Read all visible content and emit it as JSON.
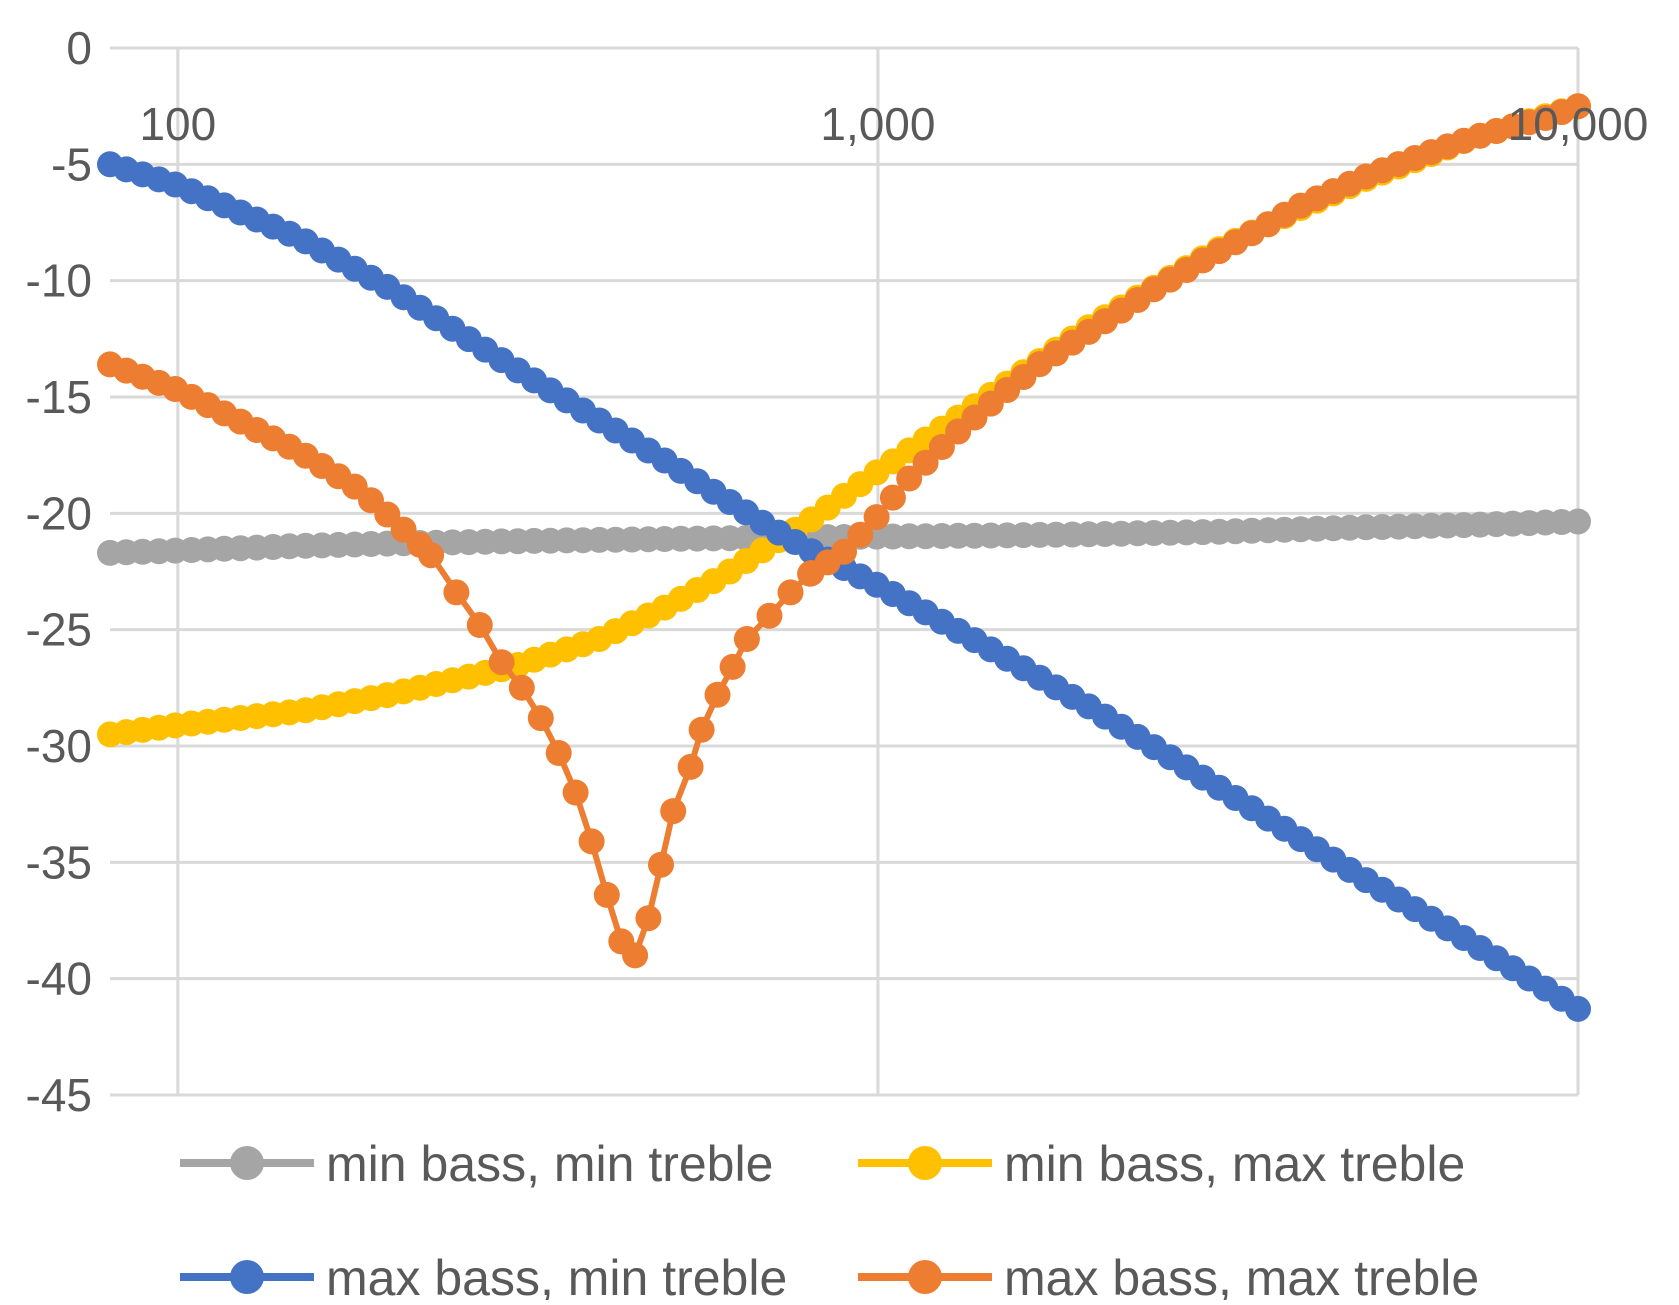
{
  "chart_data": {
    "type": "line",
    "x_scale": "log",
    "xlim": [
      80,
      10000
    ],
    "ylim": [
      -45,
      0
    ],
    "x_ticks": [
      100,
      1000,
      10000
    ],
    "x_tick_labels": [
      "100",
      "1,000",
      "10,000"
    ],
    "y_ticks": [
      0,
      -5,
      -10,
      -15,
      -20,
      -25,
      -30,
      -35,
      -40,
      -45
    ],
    "y_tick_labels": [
      "0",
      "-5",
      "-10",
      "-15",
      "-20",
      "-25",
      "-30",
      "-35",
      "-40",
      "-45"
    ],
    "grid": true,
    "legend_position": "bottom",
    "title": "",
    "xlabel": "",
    "ylabel": "",
    "series": [
      {
        "name": "min bass, min treble",
        "color": "#A5A5A5",
        "x": [
          80,
          100,
          150,
          200,
          300,
          500,
          700,
          1000,
          1500,
          2000,
          3000,
          5000,
          7000,
          10000
        ],
        "y": [
          -21.7,
          -21.6,
          -21.4,
          -21.3,
          -21.2,
          -21.1,
          -21.05,
          -21.0,
          -20.95,
          -20.9,
          -20.8,
          -20.6,
          -20.5,
          -20.35
        ]
      },
      {
        "name": "min bass, max treble",
        "color": "#FFC000",
        "x": [
          80,
          100,
          150,
          200,
          300,
          400,
          500,
          600,
          700,
          800,
          1000,
          1300,
          1500,
          2000,
          3000,
          4000,
          5000,
          6000,
          7000,
          8000,
          10000
        ],
        "y": [
          -29.5,
          -29.1,
          -28.5,
          -27.8,
          -26.6,
          -25.4,
          -24.0,
          -22.7,
          -21.4,
          -20.3,
          -18.2,
          -15.9,
          -14.6,
          -12.0,
          -8.8,
          -6.9,
          -5.6,
          -4.7,
          -3.9,
          -3.4,
          -2.5
        ]
      },
      {
        "name": "max bass, min treble",
        "color": "#4472C4",
        "x": [
          80,
          100,
          150,
          200,
          300,
          500,
          700,
          800,
          1000,
          1500,
          2000,
          3000,
          5000,
          7000,
          10000
        ],
        "y": [
          -5.0,
          -5.9,
          -8.2,
          -10.3,
          -13.7,
          -17.8,
          -20.6,
          -21.6,
          -23.1,
          -26.1,
          -28.3,
          -31.6,
          -35.8,
          -38.4,
          -41.3
        ]
      },
      {
        "name": "max bass, max treble",
        "color": "#ED7D31",
        "x": [
          80,
          100,
          120,
          150,
          180,
          200,
          230,
          250,
          270,
          290,
          310,
          330,
          350,
          370,
          390,
          410,
          430,
          450,
          470,
          490,
          510,
          540,
          560,
          590,
          620,
          650,
          700,
          750,
          800,
          900,
          1000,
          1100,
          1200,
          1300,
          1500,
          1700,
          2000,
          2500,
          3000,
          3500,
          4000,
          5000,
          6000,
          7000,
          8000,
          9000,
          10000
        ],
        "y": [
          -13.6,
          -14.7,
          -15.9,
          -17.4,
          -18.9,
          -20.1,
          -21.8,
          -23.4,
          -24.8,
          -26.4,
          -27.5,
          -28.8,
          -30.3,
          -32.0,
          -34.1,
          -36.4,
          -38.4,
          -39.0,
          -37.4,
          -35.1,
          -32.8,
          -30.9,
          -29.3,
          -27.8,
          -26.6,
          -25.4,
          -24.4,
          -23.4,
          -22.6,
          -21.6,
          -20.1,
          -18.6,
          -17.5,
          -16.5,
          -14.9,
          -13.6,
          -12.2,
          -10.3,
          -8.9,
          -7.8,
          -6.8,
          -5.5,
          -4.6,
          -3.9,
          -3.4,
          -3.0,
          -2.5
        ]
      }
    ]
  }
}
